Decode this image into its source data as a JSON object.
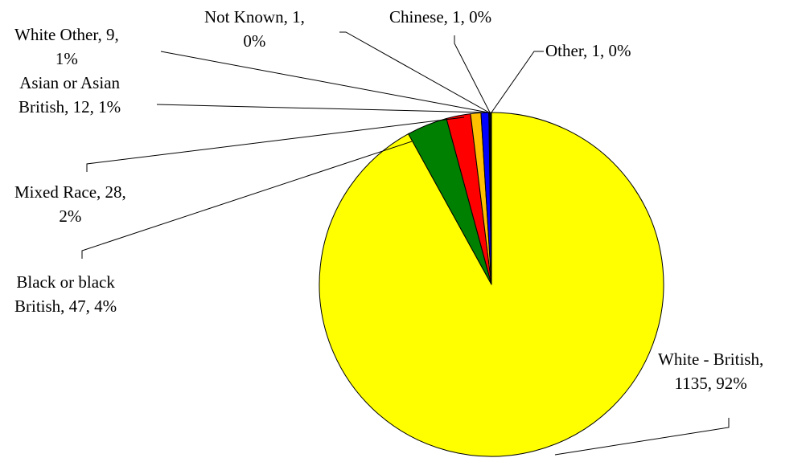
{
  "chart_data": {
    "type": "pie",
    "title": "",
    "legend": "none",
    "slices": [
      {
        "label": "White - British",
        "value": 1135,
        "percent": "92%",
        "color": "#FFFF00"
      },
      {
        "label": "Black or black British",
        "value": 47,
        "percent": "4%",
        "color": "#008000"
      },
      {
        "label": "Mixed Race",
        "value": 28,
        "percent": "2%",
        "color": "#FF0000"
      },
      {
        "label": "Asian or Asian British",
        "value": 12,
        "percent": "1%",
        "color": "#FFC000"
      },
      {
        "label": "White Other",
        "value": 9,
        "percent": "1%",
        "color": "#0000FF"
      },
      {
        "label": "Not Known",
        "value": 1,
        "percent": "0%",
        "color": "#00B0F0"
      },
      {
        "label": "Chinese",
        "value": 1,
        "percent": "0%",
        "color": "#00CCFF"
      },
      {
        "label": "Other",
        "value": 1,
        "percent": "0%",
        "color": "#000080"
      }
    ],
    "data_labels": [
      {
        "lines": [
          "White - British,",
          "1135, 92%"
        ]
      },
      {
        "lines": [
          "Black or black",
          "British, 47, 4%"
        ]
      },
      {
        "lines": [
          "Mixed Race, 28,",
          "2%"
        ]
      },
      {
        "lines": [
          "Asian or Asian",
          "British, 12, 1%"
        ]
      },
      {
        "lines": [
          "White Other, 9,",
          "1%"
        ]
      },
      {
        "lines": [
          "Not Known, 1,",
          "0%"
        ]
      },
      {
        "lines": [
          "Chinese, 1, 0%"
        ]
      },
      {
        "lines": [
          "Other, 1, 0%"
        ]
      }
    ]
  }
}
